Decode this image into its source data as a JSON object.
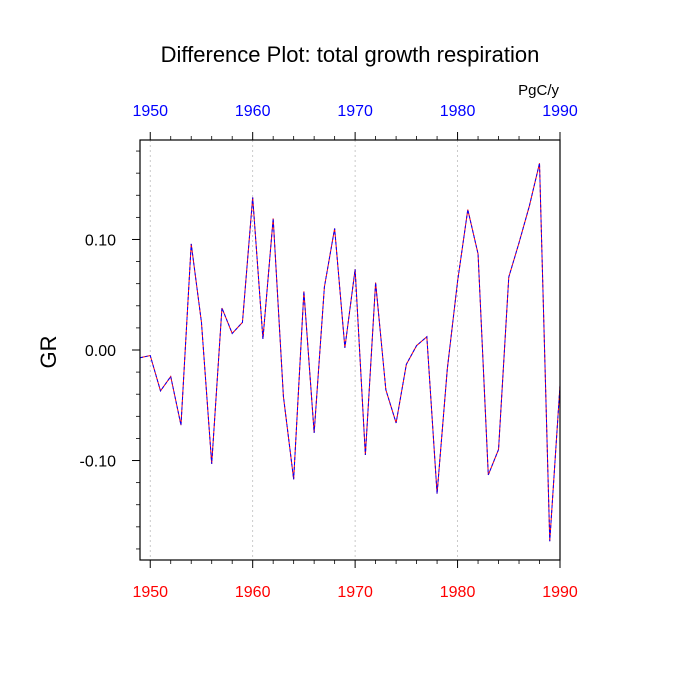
{
  "chart_data": {
    "type": "line",
    "title": "Difference Plot: total growth respiration",
    "units_label": "PgC/y",
    "ylabel": "GR",
    "xlabel": "",
    "xlim": [
      1949,
      1990
    ],
    "ylim": [
      -0.19,
      0.19
    ],
    "x_ticks": [
      1950,
      1960,
      1970,
      1980,
      1990
    ],
    "x_tick_labels": [
      "1950",
      "1960",
      "1970",
      "1980",
      "1990"
    ],
    "y_ticks": [
      0.1,
      0.0,
      -0.1
    ],
    "y_tick_labels": [
      "0.10",
      "0.00",
      "-0.10"
    ],
    "y_minor_step": 0.02,
    "x_minor_step": 2,
    "colors": {
      "bottom_axis_labels": "#ff0000",
      "top_axis_labels": "#0000ff",
      "line_a": "#ff0000",
      "line_b": "#0000ff"
    },
    "series": [
      {
        "name": "GR difference",
        "x": [
          1949,
          1950,
          1951,
          1952,
          1953,
          1954,
          1955,
          1956,
          1957,
          1958,
          1959,
          1960,
          1961,
          1962,
          1963,
          1964,
          1965,
          1966,
          1967,
          1968,
          1969,
          1970,
          1971,
          1972,
          1973,
          1974,
          1975,
          1976,
          1977,
          1978,
          1979,
          1980,
          1981,
          1982,
          1983,
          1984,
          1985,
          1986,
          1987,
          1988,
          1989,
          1990
        ],
        "values": [
          -0.007,
          -0.005,
          -0.037,
          -0.024,
          -0.068,
          0.096,
          0.025,
          -0.103,
          0.038,
          0.015,
          0.025,
          0.138,
          0.01,
          0.119,
          -0.042,
          -0.117,
          0.053,
          -0.075,
          0.057,
          0.11,
          0.002,
          0.073,
          -0.095,
          0.061,
          -0.036,
          -0.066,
          -0.013,
          0.004,
          0.012,
          -0.13,
          -0.017,
          0.062,
          0.127,
          0.087,
          -0.113,
          -0.09,
          0.066,
          0.097,
          0.13,
          0.169,
          -0.173,
          -0.032
        ]
      }
    ]
  }
}
